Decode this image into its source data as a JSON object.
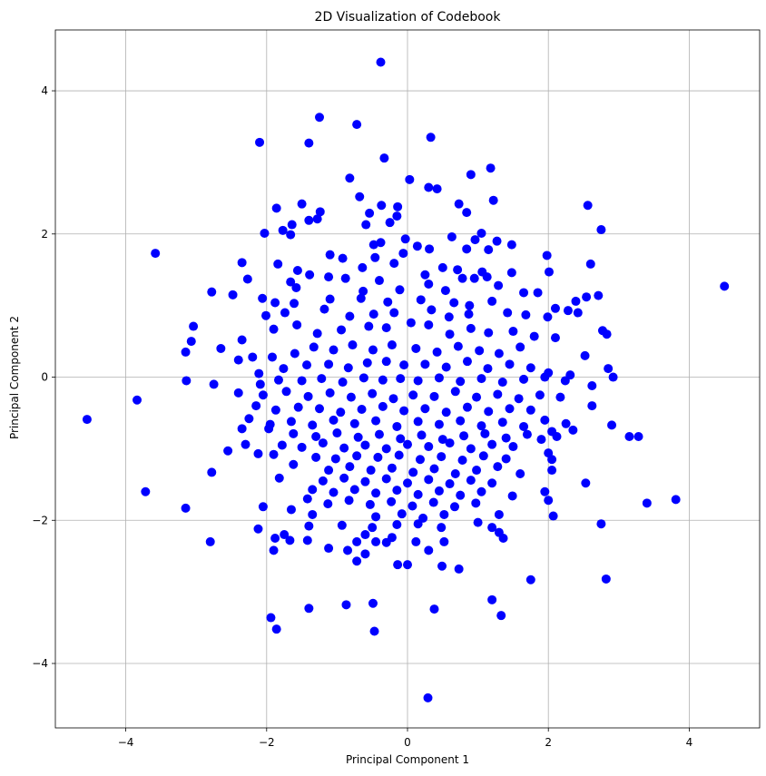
{
  "chart_data": {
    "type": "scatter",
    "title": "2D Visualization of Codebook",
    "xlabel": "Principal Component 1",
    "ylabel": "Principal Component 2",
    "xlim": [
      -5.0,
      5.0
    ],
    "ylim": [
      -4.9,
      4.85
    ],
    "xticks": [
      -4,
      -2,
      0,
      2,
      4
    ],
    "yticks": [
      -4,
      -2,
      0,
      2,
      4
    ],
    "xtick_labels": [
      "−4",
      "−2",
      "0",
      "2",
      "4"
    ],
    "ytick_labels": [
      "−4",
      "−2",
      "0",
      "2",
      "4"
    ],
    "grid": true,
    "marker_color": "#0000ff",
    "points": [
      [
        -0.38,
        4.4
      ],
      [
        0.33,
        3.35
      ],
      [
        -1.25,
        3.63
      ],
      [
        -0.72,
        3.53
      ],
      [
        -2.1,
        3.28
      ],
      [
        -1.4,
        3.27
      ],
      [
        -0.33,
        3.06
      ],
      [
        1.18,
        2.92
      ],
      [
        0.9,
        2.83
      ],
      [
        -0.82,
        2.78
      ],
      [
        0.42,
        2.63
      ],
      [
        0.3,
        2.65
      ],
      [
        0.03,
        2.76
      ],
      [
        -0.68,
        2.52
      ],
      [
        1.22,
        2.47
      ],
      [
        -1.5,
        2.42
      ],
      [
        -1.86,
        2.36
      ],
      [
        -1.24,
        2.31
      ],
      [
        -0.37,
        2.4
      ],
      [
        -0.14,
        2.38
      ],
      [
        2.56,
        2.4
      ],
      [
        2.75,
        2.06
      ],
      [
        0.73,
        2.42
      ],
      [
        0.84,
        2.3
      ],
      [
        -0.54,
        2.29
      ],
      [
        -0.15,
        2.25
      ],
      [
        -1.64,
        2.13
      ],
      [
        -1.4,
        2.19
      ],
      [
        -1.28,
        2.21
      ],
      [
        -0.25,
        2.16
      ],
      [
        -0.59,
        2.13
      ],
      [
        -2.03,
        2.01
      ],
      [
        -1.77,
        2.05
      ],
      [
        -1.66,
        1.99
      ],
      [
        0.63,
        1.96
      ],
      [
        0.96,
        1.92
      ],
      [
        1.05,
        2.01
      ],
      [
        1.27,
        1.9
      ],
      [
        -0.38,
        1.88
      ],
      [
        -0.48,
        1.85
      ],
      [
        -0.03,
        1.93
      ],
      [
        0.14,
        1.83
      ],
      [
        -3.58,
        1.73
      ],
      [
        -1.1,
        1.71
      ],
      [
        -0.92,
        1.66
      ],
      [
        -0.46,
        1.67
      ],
      [
        -0.06,
        1.73
      ],
      [
        0.31,
        1.79
      ],
      [
        0.84,
        1.79
      ],
      [
        1.15,
        1.78
      ],
      [
        1.48,
        1.85
      ],
      [
        1.98,
        1.7
      ],
      [
        2.6,
        1.58
      ],
      [
        -2.35,
        1.6
      ],
      [
        -1.84,
        1.58
      ],
      [
        -1.56,
        1.49
      ],
      [
        -1.39,
        1.43
      ],
      [
        -0.64,
        1.53
      ],
      [
        -0.19,
        1.59
      ],
      [
        0.5,
        1.53
      ],
      [
        0.71,
        1.5
      ],
      [
        1.06,
        1.47
      ],
      [
        1.48,
        1.46
      ],
      [
        2.01,
        1.47
      ],
      [
        -2.27,
        1.37
      ],
      [
        -1.66,
        1.33
      ],
      [
        -1.12,
        1.4
      ],
      [
        -0.88,
        1.38
      ],
      [
        -0.4,
        1.35
      ],
      [
        0.25,
        1.43
      ],
      [
        0.78,
        1.38
      ],
      [
        0.95,
        1.38
      ],
      [
        1.13,
        1.4
      ],
      [
        -2.78,
        1.19
      ],
      [
        -2.48,
        1.15
      ],
      [
        -1.58,
        1.25
      ],
      [
        -0.63,
        1.2
      ],
      [
        -0.11,
        1.22
      ],
      [
        0.3,
        1.3
      ],
      [
        0.54,
        1.21
      ],
      [
        1.29,
        1.28
      ],
      [
        1.65,
        1.18
      ],
      [
        1.85,
        1.18
      ],
      [
        2.39,
        1.06
      ],
      [
        2.54,
        1.12
      ],
      [
        2.71,
        1.14
      ],
      [
        -2.06,
        1.1
      ],
      [
        -1.88,
        1.04
      ],
      [
        -1.61,
        1.03
      ],
      [
        -1.1,
        1.09
      ],
      [
        -0.66,
        1.1
      ],
      [
        -0.28,
        1.05
      ],
      [
        0.19,
        1.08
      ],
      [
        0.66,
        1.04
      ],
      [
        0.88,
        1.0
      ],
      [
        1.2,
        1.06
      ],
      [
        2.1,
        0.96
      ],
      [
        -3.04,
        0.71
      ],
      [
        -2.01,
        0.86
      ],
      [
        -1.74,
        0.9
      ],
      [
        -1.18,
        0.95
      ],
      [
        -0.82,
        0.85
      ],
      [
        -0.48,
        0.88
      ],
      [
        -0.19,
        0.9
      ],
      [
        0.34,
        0.94
      ],
      [
        0.59,
        0.84
      ],
      [
        0.87,
        0.88
      ],
      [
        1.42,
        0.9
      ],
      [
        1.68,
        0.87
      ],
      [
        1.99,
        0.84
      ],
      [
        2.28,
        0.93
      ],
      [
        2.42,
        0.9
      ],
      [
        -3.07,
        0.5
      ],
      [
        -2.35,
        0.52
      ],
      [
        -1.9,
        0.67
      ],
      [
        -1.57,
        0.73
      ],
      [
        -1.28,
        0.61
      ],
      [
        -0.94,
        0.66
      ],
      [
        -0.55,
        0.71
      ],
      [
        -0.3,
        0.69
      ],
      [
        0.05,
        0.76
      ],
      [
        0.3,
        0.73
      ],
      [
        0.6,
        0.6
      ],
      [
        0.9,
        0.68
      ],
      [
        1.15,
        0.62
      ],
      [
        1.5,
        0.64
      ],
      [
        1.8,
        0.57
      ],
      [
        2.1,
        0.55
      ],
      [
        2.77,
        0.65
      ],
      [
        2.83,
        0.6
      ],
      [
        -3.15,
        0.35
      ],
      [
        -2.65,
        0.4
      ],
      [
        -2.2,
        0.28
      ],
      [
        -1.92,
        0.28
      ],
      [
        -1.6,
        0.33
      ],
      [
        -1.33,
        0.42
      ],
      [
        -1.05,
        0.38
      ],
      [
        -0.78,
        0.45
      ],
      [
        -0.49,
        0.38
      ],
      [
        -0.22,
        0.45
      ],
      [
        0.12,
        0.4
      ],
      [
        0.42,
        0.35
      ],
      [
        0.72,
        0.43
      ],
      [
        1.02,
        0.37
      ],
      [
        1.3,
        0.33
      ],
      [
        1.6,
        0.42
      ],
      [
        2.52,
        0.3
      ],
      [
        -2.4,
        0.24
      ],
      [
        -2.11,
        0.05
      ],
      [
        -1.76,
        0.12
      ],
      [
        -1.43,
        0.17
      ],
      [
        -1.12,
        0.18
      ],
      [
        -0.84,
        0.13
      ],
      [
        -0.57,
        0.2
      ],
      [
        -0.3,
        0.22
      ],
      [
        -0.05,
        0.17
      ],
      [
        0.25,
        0.18
      ],
      [
        0.55,
        0.14
      ],
      [
        0.85,
        0.22
      ],
      [
        1.14,
        0.12
      ],
      [
        1.45,
        0.18
      ],
      [
        1.75,
        0.13
      ],
      [
        2.0,
        0.06
      ],
      [
        2.31,
        0.03
      ],
      [
        2.92,
        0.0
      ],
      [
        2.85,
        0.12
      ],
      [
        -3.14,
        -0.05
      ],
      [
        -2.09,
        -0.1
      ],
      [
        -1.83,
        -0.04
      ],
      [
        -1.5,
        -0.05
      ],
      [
        -1.22,
        -0.02
      ],
      [
        -0.92,
        -0.07
      ],
      [
        -0.62,
        -0.01
      ],
      [
        -0.35,
        -0.04
      ],
      [
        -0.1,
        -0.02
      ],
      [
        0.15,
        -0.05
      ],
      [
        0.45,
        -0.01
      ],
      [
        0.75,
        -0.06
      ],
      [
        1.05,
        -0.02
      ],
      [
        1.35,
        -0.07
      ],
      [
        1.65,
        -0.03
      ],
      [
        1.95,
        0.0
      ],
      [
        2.24,
        -0.05
      ],
      [
        2.62,
        -0.12
      ],
      [
        -2.75,
        -0.1
      ],
      [
        -2.4,
        -0.22
      ],
      [
        -2.05,
        -0.25
      ],
      [
        -1.72,
        -0.2
      ],
      [
        -1.41,
        -0.27
      ],
      [
        -1.1,
        -0.22
      ],
      [
        -0.8,
        -0.28
      ],
      [
        -0.5,
        -0.23
      ],
      [
        -0.2,
        -0.3
      ],
      [
        0.08,
        -0.25
      ],
      [
        0.38,
        -0.27
      ],
      [
        0.68,
        -0.2
      ],
      [
        0.98,
        -0.28
      ],
      [
        1.28,
        -0.24
      ],
      [
        1.58,
        -0.3
      ],
      [
        1.88,
        -0.25
      ],
      [
        2.17,
        -0.28
      ],
      [
        -3.84,
        -0.32
      ],
      [
        -2.15,
        -0.4
      ],
      [
        -1.87,
        -0.46
      ],
      [
        -1.55,
        -0.42
      ],
      [
        -1.25,
        -0.44
      ],
      [
        -0.95,
        -0.49
      ],
      [
        -0.65,
        -0.45
      ],
      [
        -0.35,
        -0.41
      ],
      [
        -0.05,
        -0.47
      ],
      [
        0.25,
        -0.44
      ],
      [
        0.55,
        -0.49
      ],
      [
        0.85,
        -0.42
      ],
      [
        1.15,
        -0.48
      ],
      [
        1.45,
        -0.44
      ],
      [
        1.75,
        -0.46
      ],
      [
        2.62,
        -0.4
      ],
      [
        -4.55,
        -0.59
      ],
      [
        -2.25,
        -0.58
      ],
      [
        -1.95,
        -0.66
      ],
      [
        -1.65,
        -0.62
      ],
      [
        -1.35,
        -0.67
      ],
      [
        -1.05,
        -0.6
      ],
      [
        -0.75,
        -0.65
      ],
      [
        -0.45,
        -0.61
      ],
      [
        -0.15,
        -0.69
      ],
      [
        0.15,
        -0.62
      ],
      [
        0.45,
        -0.66
      ],
      [
        0.75,
        -0.61
      ],
      [
        1.05,
        -0.68
      ],
      [
        1.35,
        -0.63
      ],
      [
        1.65,
        -0.69
      ],
      [
        1.95,
        -0.6
      ],
      [
        2.25,
        -0.65
      ],
      [
        -2.35,
        -0.72
      ],
      [
        -1.97,
        -0.72
      ],
      [
        -1.62,
        -0.79
      ],
      [
        -1.3,
        -0.83
      ],
      [
        -1.0,
        -0.78
      ],
      [
        -0.7,
        -0.84
      ],
      [
        -0.4,
        -0.8
      ],
      [
        -0.1,
        -0.86
      ],
      [
        0.2,
        -0.81
      ],
      [
        0.5,
        -0.87
      ],
      [
        0.8,
        -0.82
      ],
      [
        1.1,
        -0.79
      ],
      [
        1.4,
        -0.85
      ],
      [
        1.7,
        -0.8
      ],
      [
        2.05,
        -0.76
      ],
      [
        2.35,
        -0.74
      ],
      [
        2.9,
        -0.67
      ],
      [
        -2.3,
        -0.94
      ],
      [
        -1.78,
        -0.95
      ],
      [
        -1.5,
        -0.98
      ],
      [
        -1.2,
        -0.92
      ],
      [
        -0.9,
        -0.99
      ],
      [
        -0.6,
        -0.95
      ],
      [
        -0.3,
        -1.0
      ],
      [
        0.0,
        -0.94
      ],
      [
        0.3,
        -0.97
      ],
      [
        0.6,
        -0.92
      ],
      [
        0.9,
        -1.0
      ],
      [
        1.2,
        -0.94
      ],
      [
        1.5,
        -0.97
      ],
      [
        1.9,
        -0.87
      ],
      [
        2.12,
        -0.83
      ],
      [
        3.15,
        -0.83
      ],
      [
        3.28,
        -0.83
      ],
      [
        -2.55,
        -1.03
      ],
      [
        -2.12,
        -1.07
      ],
      [
        -1.9,
        -1.08
      ],
      [
        -1.3,
        -1.12
      ],
      [
        -1.02,
        -1.14
      ],
      [
        -0.72,
        -1.1
      ],
      [
        -0.42,
        -1.12
      ],
      [
        -0.12,
        -1.09
      ],
      [
        0.18,
        -1.15
      ],
      [
        0.48,
        -1.11
      ],
      [
        0.78,
        -1.16
      ],
      [
        1.08,
        -1.1
      ],
      [
        1.4,
        -1.14
      ],
      [
        2.0,
        -1.06
      ],
      [
        2.05,
        -1.15
      ],
      [
        -1.62,
        -1.22
      ],
      [
        -1.12,
        -1.3
      ],
      [
        -0.82,
        -1.25
      ],
      [
        -0.52,
        -1.3
      ],
      [
        -0.22,
        -1.27
      ],
      [
        0.08,
        -1.33
      ],
      [
        0.38,
        -1.28
      ],
      [
        0.68,
        -1.35
      ],
      [
        0.98,
        -1.3
      ],
      [
        1.28,
        -1.25
      ],
      [
        1.6,
        -1.35
      ],
      [
        2.05,
        -1.3
      ],
      [
        -2.78,
        -1.33
      ],
      [
        -1.82,
        -1.41
      ],
      [
        -1.2,
        -1.45
      ],
      [
        -0.9,
        -1.41
      ],
      [
        -0.6,
        -1.46
      ],
      [
        -0.3,
        -1.42
      ],
      [
        0.0,
        -1.48
      ],
      [
        0.3,
        -1.43
      ],
      [
        0.6,
        -1.49
      ],
      [
        0.9,
        -1.44
      ],
      [
        1.2,
        -1.48
      ],
      [
        2.53,
        -1.48
      ],
      [
        -1.35,
        -1.57
      ],
      [
        -1.05,
        -1.61
      ],
      [
        -0.75,
        -1.57
      ],
      [
        -0.45,
        -1.62
      ],
      [
        -0.15,
        -1.58
      ],
      [
        0.15,
        -1.64
      ],
      [
        0.45,
        -1.59
      ],
      [
        0.75,
        -1.65
      ],
      [
        1.05,
        -1.6
      ],
      [
        1.49,
        -1.66
      ],
      [
        1.95,
        -1.6
      ],
      [
        -3.72,
        -1.6
      ],
      [
        -1.42,
        -1.7
      ],
      [
        -1.13,
        -1.77
      ],
      [
        -0.83,
        -1.72
      ],
      [
        -0.53,
        -1.78
      ],
      [
        -0.23,
        -1.74
      ],
      [
        0.07,
        -1.8
      ],
      [
        0.37,
        -1.75
      ],
      [
        0.67,
        -1.81
      ],
      [
        0.97,
        -1.76
      ],
      [
        2.0,
        -1.72
      ],
      [
        3.4,
        -1.76
      ],
      [
        3.81,
        -1.71
      ],
      [
        -3.15,
        -1.83
      ],
      [
        -2.05,
        -1.81
      ],
      [
        -1.65,
        -1.85
      ],
      [
        -1.35,
        -1.92
      ],
      [
        -0.45,
        -1.95
      ],
      [
        -0.08,
        -1.91
      ],
      [
        0.22,
        -1.97
      ],
      [
        0.52,
        -1.92
      ],
      [
        1.3,
        -1.92
      ],
      [
        2.07,
        -1.94
      ],
      [
        -1.4,
        -2.08
      ],
      [
        -0.93,
        -2.07
      ],
      [
        -0.5,
        -2.1
      ],
      [
        -0.15,
        -2.06
      ],
      [
        0.15,
        -2.05
      ],
      [
        0.48,
        -2.1
      ],
      [
        1.0,
        -2.03
      ],
      [
        1.2,
        -2.1
      ],
      [
        2.75,
        -2.05
      ],
      [
        -2.12,
        -2.12
      ],
      [
        -1.75,
        -2.2
      ],
      [
        -0.6,
        -2.2
      ],
      [
        -0.22,
        -2.24
      ],
      [
        1.3,
        -2.17
      ],
      [
        -1.88,
        -2.25
      ],
      [
        -1.67,
        -2.28
      ],
      [
        -0.72,
        -2.3
      ],
      [
        -0.45,
        -2.3
      ],
      [
        -0.3,
        -2.31
      ],
      [
        0.12,
        -2.3
      ],
      [
        0.52,
        -2.3
      ],
      [
        1.36,
        -2.25
      ],
      [
        -2.8,
        -2.3
      ],
      [
        -1.42,
        -2.28
      ],
      [
        -1.9,
        -2.42
      ],
      [
        -1.12,
        -2.39
      ],
      [
        -0.85,
        -2.42
      ],
      [
        -0.6,
        -2.47
      ],
      [
        0.3,
        -2.42
      ],
      [
        -0.72,
        -2.57
      ],
      [
        -0.14,
        -2.62
      ],
      [
        0.0,
        -2.62
      ],
      [
        0.49,
        -2.64
      ],
      [
        0.73,
        -2.68
      ],
      [
        1.75,
        -2.83
      ],
      [
        2.82,
        -2.82
      ],
      [
        1.2,
        -3.11
      ],
      [
        -1.4,
        -3.23
      ],
      [
        -0.87,
        -3.18
      ],
      [
        -0.49,
        -3.16
      ],
      [
        0.38,
        -3.24
      ],
      [
        1.33,
        -3.33
      ],
      [
        -1.94,
        -3.36
      ],
      [
        -1.86,
        -3.52
      ],
      [
        -0.47,
        -3.55
      ],
      [
        0.29,
        -4.48
      ],
      [
        4.5,
        1.27
      ]
    ]
  }
}
